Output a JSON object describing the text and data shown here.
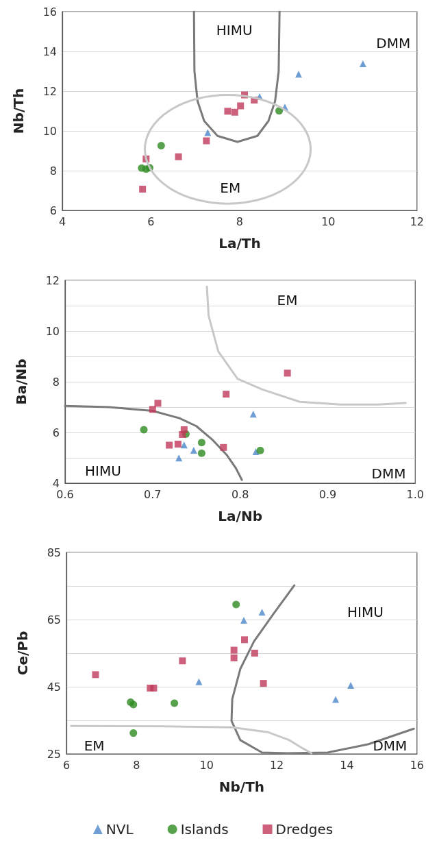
{
  "chart_data": [
    {
      "type": "scatter",
      "xlabel": "La/Th",
      "ylabel": "Nb/Th",
      "xlim": [
        4,
        12
      ],
      "xticks": [
        4,
        6,
        8,
        10,
        12
      ],
      "ylim": [
        6,
        16
      ],
      "yticks": [
        6,
        8,
        10,
        12,
        14,
        16
      ],
      "grid": "y",
      "legend": false,
      "annotations": [
        "HIMU",
        "DMM",
        "EM"
      ],
      "series": [
        {
          "color": "#4a86c8",
          "marker": "triangle",
          "x": [
            10.78,
            9.33,
            8.45,
            9.02,
            7.28
          ],
          "values": [
            13.38,
            12.85,
            11.72,
            11.2,
            9.91
          ]
        },
        {
          "color": "#2e8b22",
          "marker": "circle",
          "x": [
            8.89,
            6.23,
            5.79,
            5.89,
            5.97
          ],
          "values": [
            11.01,
            9.26,
            8.13,
            8.08,
            8.15
          ]
        },
        {
          "color": "#c0395a",
          "marker": "square",
          "x": [
            8.11,
            8.33,
            8.02,
            7.73,
            7.89,
            7.25,
            6.62,
            5.89,
            5.81
          ],
          "values": [
            11.81,
            11.55,
            11.26,
            10.99,
            10.94,
            9.5,
            8.7,
            8.59,
            7.07
          ]
        },
        {
          "type": "line",
          "marker": "none",
          "color": "#7a7a7a",
          "x": [
            6.97,
            6.98,
            7.05,
            7.2,
            7.5,
            7.95,
            8.4,
            8.65,
            8.8,
            8.88,
            8.9
          ],
          "values": [
            16,
            13,
            11.5,
            10.5,
            9.75,
            9.45,
            9.75,
            10.5,
            11.5,
            13,
            16
          ]
        }
      ]
    },
    {
      "type": "scatter",
      "xlabel": "La/Nb",
      "ylabel": "Ba/Nb",
      "xlim": [
        0.6,
        1.0
      ],
      "xticks": [
        0.6,
        0.7,
        0.8,
        0.9,
        {
          "value": 1,
          "label": "1.0"
        }
      ],
      "ylim": [
        4,
        12
      ],
      "yticks": [
        4,
        {
          "value": 5,
          "label": null
        },
        6,
        {
          "value": 7,
          "label": null
        },
        8,
        {
          "value": 9,
          "label": null
        },
        10,
        {
          "value": 11,
          "label": null
        },
        12
      ],
      "grid": "y",
      "legend": false,
      "annotations": [
        "EM",
        "HIMU",
        "DMM"
      ],
      "series": [
        {
          "color": "#4a86c8",
          "marker": "triangle",
          "x": [
            0.815,
            0.73,
            0.736,
            0.747,
            0.818
          ],
          "values": [
            6.72,
            4.99,
            5.51,
            5.3,
            5.24
          ]
        },
        {
          "color": "#2e8b22",
          "marker": "circle",
          "x": [
            0.69,
            0.738,
            0.756,
            0.756,
            0.823
          ],
          "values": [
            6.11,
            5.94,
            5.6,
            5.18,
            5.29
          ]
        },
        {
          "color": "#c0395a",
          "marker": "square",
          "x": [
            0.854,
            0.784,
            0.706,
            0.7,
            0.736,
            0.734,
            0.719,
            0.729,
            0.781
          ],
          "values": [
            8.34,
            7.51,
            7.15,
            6.91,
            6.11,
            5.92,
            5.5,
            5.54,
            5.41
          ]
        },
        {
          "type": "line",
          "marker": "none",
          "color": "#7a7a7a",
          "x": [
            0.6,
            0.65,
            0.7,
            0.731,
            0.75,
            0.769,
            0.785,
            0.795,
            0.802
          ],
          "values": [
            7.05,
            7.0,
            6.85,
            6.56,
            6.25,
            5.69,
            5.1,
            4.6,
            4.13
          ]
        },
        {
          "type": "line",
          "marker": "none",
          "color": "#c8c8c8",
          "x": [
            0.762,
            0.764,
            0.775,
            0.797,
            0.825,
            0.868,
            0.915,
            0.957,
            0.989
          ],
          "values": [
            11.75,
            10.6,
            9.2,
            8.12,
            7.7,
            7.21,
            7.1,
            7.1,
            7.16
          ]
        }
      ]
    },
    {
      "type": "scatter",
      "xlabel": "Nb/Th",
      "ylabel": "Ce/Pb",
      "xlim": [
        6,
        16
      ],
      "xticks": [
        6,
        8,
        10,
        12,
        14,
        16
      ],
      "ylim": [
        25,
        85
      ],
      "yticks": [
        25,
        {
          "value": 35,
          "label": null
        },
        45,
        {
          "value": 55,
          "label": null
        },
        65,
        {
          "value": 75,
          "label": null
        },
        85
      ],
      "grid": "y",
      "legend": "bottom",
      "annotations": [
        "HIMU",
        "EM",
        "DMM"
      ],
      "series": [
        {
          "name": "NVL",
          "color": "#4a86c8",
          "marker": "triangle",
          "x": [
            11.58,
            11.06,
            9.78,
            14.11,
            13.68
          ],
          "values": [
            67.2,
            64.8,
            46.5,
            45.4,
            41.2
          ]
        },
        {
          "name": "Islands",
          "color": "#2e8b22",
          "marker": "circle",
          "x": [
            10.84,
            7.83,
            7.91,
            9.08,
            7.91
          ],
          "values": [
            69.5,
            40.4,
            39.7,
            40.1,
            31.2
          ]
        },
        {
          "name": "Dredges",
          "color": "#c0395a",
          "marker": "square",
          "x": [
            6.83,
            11.08,
            10.78,
            10.78,
            11.37,
            9.31,
            8.39,
            8.49,
            11.62
          ],
          "values": [
            48.6,
            59.0,
            55.9,
            53.6,
            55.0,
            52.7,
            44.6,
            44.6,
            46.0
          ]
        },
        {
          "type": "line",
          "marker": "none",
          "color": "#7a7a7a",
          "x": [
            12.5,
            11.9,
            11.35,
            10.96,
            10.73,
            10.71,
            10.96,
            11.58,
            12.3,
            13.45,
            14.62,
            15.91
          ],
          "values": [
            75.2,
            66.6,
            58.5,
            50.3,
            41.3,
            34.8,
            29.1,
            25.4,
            25.2,
            25.4,
            27.9,
            32.5
          ]
        },
        {
          "type": "line",
          "marker": "none",
          "color": "#c8c8c8",
          "x": [
            6.13,
            8.78,
            10.73,
            11.74,
            12.36,
            12.75,
            12.99
          ],
          "values": [
            33.3,
            33.2,
            32.9,
            31.5,
            29.1,
            26.6,
            25.2
          ]
        }
      ]
    }
  ]
}
